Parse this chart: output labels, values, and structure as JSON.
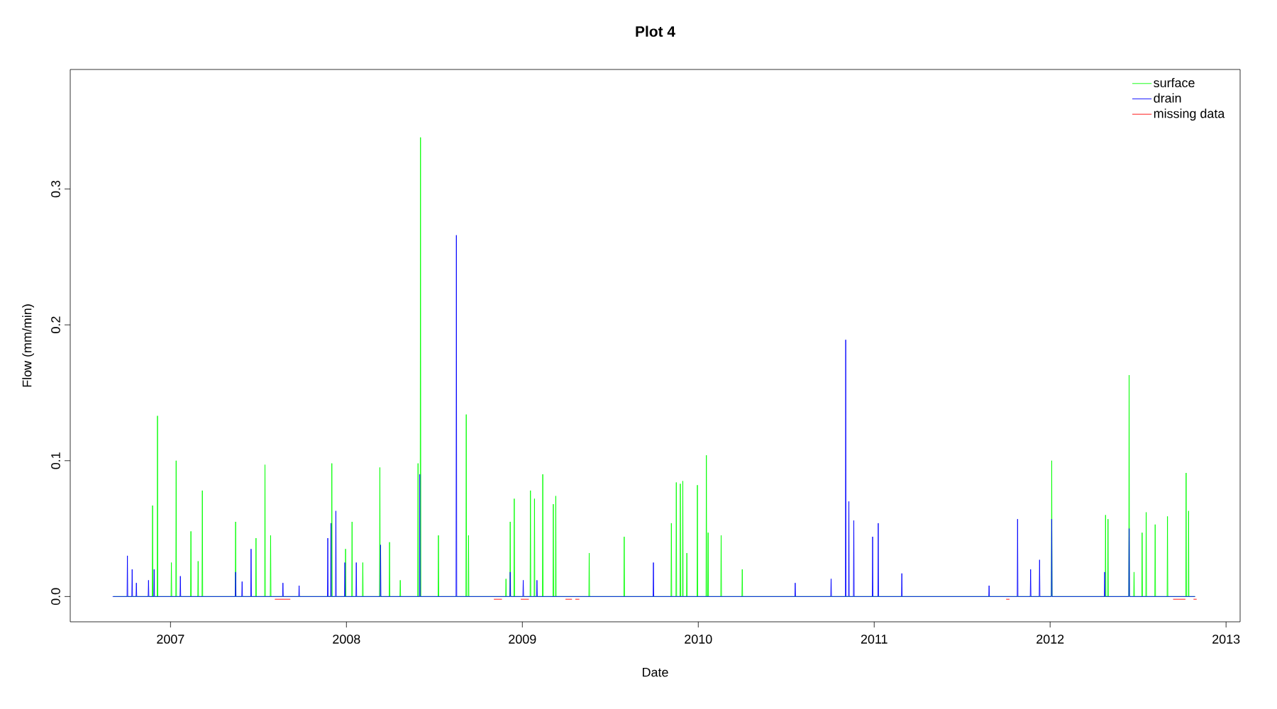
{
  "chart_data": {
    "type": "line",
    "title": "Plot 4",
    "xlabel": "Date",
    "ylabel": "Flow (mm/min)",
    "xlim": [
      2006.43,
      2013.08
    ],
    "ylim": [
      -0.0186,
      0.388
    ],
    "xticks": [
      2007,
      2008,
      2009,
      2010,
      2011,
      2012,
      2013
    ],
    "yticks": [
      {
        "value": 0,
        "label": "0.0"
      },
      0.1,
      0.2,
      0.3
    ],
    "legend": "top right",
    "series": [
      {
        "name": "surface",
        "color": "#00ff00",
        "x": [
          2006.676,
          2006.896,
          2006.898,
          2006.9,
          2006.924,
          2006.926,
          2006.928,
          2007.003,
          2007.005,
          2007.007,
          2007.03,
          2007.032,
          2007.034,
          2007.114,
          2007.116,
          2007.118,
          2007.155,
          2007.157,
          2007.159,
          2007.179,
          2007.181,
          2007.183,
          2007.368,
          2007.37,
          2007.372,
          2007.484,
          2007.486,
          2007.488,
          2007.535,
          2007.537,
          2007.539,
          2007.567,
          2007.569,
          2007.571,
          2007.915,
          2007.917,
          2007.919,
          2007.993,
          2007.995,
          2007.997,
          2008.03,
          2008.032,
          2008.034,
          2008.091,
          2008.093,
          2008.095,
          2008.188,
          2008.19,
          2008.192,
          2008.243,
          2008.245,
          2008.247,
          2008.304,
          2008.306,
          2008.308,
          2008.405,
          2008.407,
          2008.409,
          2008.419,
          2008.421,
          2008.423,
          2008.521,
          2008.523,
          2008.525,
          2008.679,
          2008.681,
          2008.683,
          2008.692,
          2008.694,
          2008.696,
          2008.905,
          2008.907,
          2008.909,
          2008.929,
          2008.931,
          2008.933,
          2008.952,
          2008.954,
          2008.956,
          2009.044,
          2009.046,
          2009.048,
          2009.067,
          2009.069,
          2009.071,
          2009.114,
          2009.116,
          2009.118,
          2009.174,
          2009.176,
          2009.178,
          2009.188,
          2009.19,
          2009.192,
          2009.378,
          2009.38,
          2009.382,
          2009.577,
          2009.579,
          2009.581,
          2009.845,
          2009.847,
          2009.849,
          2009.873,
          2009.875,
          2009.877,
          2009.896,
          2009.898,
          2009.9,
          2009.91,
          2009.912,
          2009.914,
          2009.933,
          2009.935,
          2009.937,
          2009.993,
          2009.995,
          2009.997,
          2010.044,
          2010.046,
          2010.048,
          2010.054,
          2010.056,
          2010.058,
          2010.128,
          2010.13,
          2010.132,
          2010.248,
          2010.25,
          2010.252,
          2012.007,
          2012.009,
          2012.011,
          2012.313,
          2012.315,
          2012.317,
          2012.327,
          2012.329,
          2012.331,
          2012.447,
          2012.449,
          2012.451,
          2012.475,
          2012.477,
          2012.479,
          2012.521,
          2012.523,
          2012.525,
          2012.544,
          2012.546,
          2012.548,
          2012.595,
          2012.597,
          2012.599,
          2012.665,
          2012.667,
          2012.669,
          2012.771,
          2012.773,
          2012.775,
          2012.785,
          2012.787,
          2012.789,
          2012.824
        ],
        "values": [
          0,
          0,
          0.067,
          0,
          0,
          0.133,
          0,
          0,
          0.025,
          0,
          0,
          0.1,
          0,
          0,
          0.048,
          0,
          0,
          0.026,
          0,
          0,
          0.078,
          0,
          0,
          0.055,
          0,
          0,
          0.043,
          0,
          0,
          0.097,
          0,
          0,
          0.045,
          0,
          0,
          0.098,
          0,
          0,
          0.035,
          0,
          0,
          0.055,
          0,
          0,
          0.025,
          0,
          0,
          0.095,
          0,
          0,
          0.04,
          0,
          0,
          0.012,
          0,
          0,
          0.098,
          0,
          0,
          0.338,
          0,
          0,
          0.045,
          0,
          0,
          0.134,
          0,
          0,
          0.045,
          0,
          0,
          0.013,
          0,
          0,
          0.055,
          0,
          0,
          0.072,
          0,
          0,
          0.078,
          0,
          0,
          0.072,
          0,
          0,
          0.09,
          0,
          0,
          0.068,
          0,
          0,
          0.074,
          0,
          0,
          0.032,
          0,
          0,
          0.044,
          0,
          0,
          0.054,
          0,
          0,
          0.084,
          0,
          0,
          0.083,
          0,
          0,
          0.085,
          0,
          0,
          0.032,
          0,
          0,
          0.082,
          0,
          0,
          0.104,
          0,
          0,
          0.047,
          0,
          0,
          0.045,
          0,
          0,
          0.02,
          0,
          0,
          0.1,
          0,
          0,
          0.06,
          0,
          0,
          0.057,
          0,
          0,
          0.163,
          0,
          0,
          0.018,
          0,
          0,
          0.047,
          0,
          0,
          0.062,
          0,
          0,
          0.053,
          0,
          0,
          0.059,
          0,
          0,
          0.091,
          0,
          0,
          0.063,
          0,
          0
        ]
      },
      {
        "name": "drain",
        "color": "#0000ff",
        "x": [
          2006.671,
          2006.753,
          2006.755,
          2006.757,
          2006.78,
          2006.782,
          2006.784,
          2006.804,
          2006.806,
          2006.808,
          2006.873,
          2006.875,
          2006.877,
          2006.905,
          2006.907,
          2006.909,
          2007.054,
          2007.056,
          2007.058,
          2007.368,
          2007.37,
          2007.372,
          2007.405,
          2007.407,
          2007.409,
          2007.456,
          2007.458,
          2007.46,
          2007.637,
          2007.639,
          2007.641,
          2007.729,
          2007.731,
          2007.733,
          2007.892,
          2007.894,
          2007.896,
          2007.91,
          2007.912,
          2007.914,
          2007.938,
          2007.94,
          2007.942,
          2007.989,
          2007.991,
          2007.993,
          2008.054,
          2008.056,
          2008.058,
          2008.192,
          2008.194,
          2008.196,
          2008.415,
          2008.417,
          2008.419,
          2008.623,
          2008.625,
          2008.627,
          2008.929,
          2008.931,
          2008.933,
          2009.003,
          2009.005,
          2009.007,
          2009.081,
          2009.083,
          2009.085,
          2009.743,
          2009.745,
          2009.747,
          2010.549,
          2010.551,
          2010.553,
          2010.753,
          2010.755,
          2010.757,
          2010.836,
          2010.838,
          2010.84,
          2010.854,
          2010.856,
          2010.858,
          2010.882,
          2010.884,
          2010.886,
          2010.989,
          2010.991,
          2010.993,
          2011.021,
          2011.023,
          2011.025,
          2011.155,
          2011.157,
          2011.159,
          2011.651,
          2011.653,
          2011.655,
          2011.813,
          2011.815,
          2011.817,
          2011.887,
          2011.889,
          2011.891,
          2011.938,
          2011.94,
          2011.942,
          2012.007,
          2012.009,
          2012.011,
          2012.308,
          2012.31,
          2012.312,
          2012.447,
          2012.449,
          2012.451,
          2012.824
        ],
        "values": [
          0,
          0,
          0.03,
          0,
          0,
          0.02,
          0,
          0,
          0.01,
          0,
          0,
          0.012,
          0,
          0,
          0.02,
          0,
          0,
          0.015,
          0,
          0,
          0.018,
          0,
          0,
          0.011,
          0,
          0,
          0.035,
          0,
          0,
          0.01,
          0,
          0,
          0.008,
          0,
          0,
          0.043,
          0,
          0,
          0.054,
          0,
          0,
          0.063,
          0,
          0,
          0.025,
          0,
          0,
          0.025,
          0,
          0,
          0.038,
          0,
          0,
          0.09,
          0,
          0,
          0.266,
          0,
          0,
          0.018,
          0,
          0,
          0.012,
          0,
          0,
          0.012,
          0,
          0,
          0.025,
          0,
          0,
          0.01,
          0,
          0,
          0.013,
          0,
          0,
          0.189,
          0,
          0,
          0.07,
          0,
          0,
          0.056,
          0,
          0,
          0.044,
          0,
          0,
          0.054,
          0,
          0,
          0.017,
          0,
          0,
          0.008,
          0,
          0,
          0.057,
          0,
          0,
          0.02,
          0,
          0,
          0.027,
          0,
          0,
          0.057,
          0,
          0,
          0.018,
          0,
          0,
          0.05,
          0,
          0
        ]
      },
      {
        "name": "missing data",
        "color": "#ff0000",
        "x": [
          2007.593,
          2007.681,
          2007.7,
          2008.838,
          2008.884,
          2008.9,
          2008.991,
          2009.037,
          2009.1,
          2009.245,
          2009.282,
          2009.29,
          2009.301,
          2009.324,
          2009.4,
          2011.75,
          2011.769,
          2011.8,
          2012.699,
          2012.769,
          2012.79,
          2012.815,
          2012.833
        ],
        "values": [
          -0.002,
          -0.002,
          null,
          -0.002,
          -0.002,
          null,
          -0.002,
          -0.002,
          null,
          -0.002,
          -0.002,
          null,
          -0.002,
          -0.002,
          null,
          -0.002,
          -0.002,
          null,
          -0.002,
          -0.002,
          null,
          -0.002,
          -0.002
        ]
      }
    ]
  }
}
